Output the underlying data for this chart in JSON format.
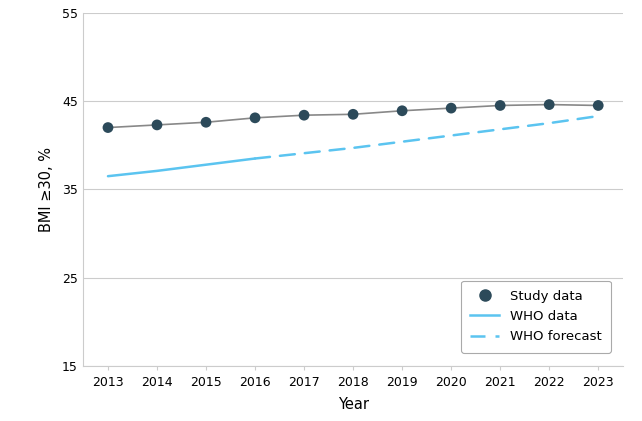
{
  "years": [
    2013,
    2014,
    2015,
    2016,
    2017,
    2018,
    2019,
    2020,
    2021,
    2022,
    2023
  ],
  "study_data": [
    42.0,
    42.3,
    42.6,
    43.1,
    43.4,
    43.5,
    43.9,
    44.2,
    44.5,
    44.6,
    44.5
  ],
  "who_data_years": [
    2013,
    2014,
    2015,
    2016
  ],
  "who_data_values": [
    36.5,
    37.1,
    37.8,
    38.5
  ],
  "who_forecast_years": [
    2016,
    2017,
    2018,
    2019,
    2020,
    2021,
    2022,
    2023
  ],
  "who_forecast_values": [
    38.5,
    39.1,
    39.7,
    40.4,
    41.1,
    41.8,
    42.5,
    43.3
  ],
  "study_line_color": "#888888",
  "study_dot_color": "#2c4a5a",
  "who_data_color": "#5bc4f0",
  "who_forecast_color": "#5bc4f0",
  "ylim": [
    15,
    55
  ],
  "yticks": [
    15,
    25,
    35,
    45,
    55
  ],
  "xlim": [
    2012.5,
    2023.5
  ],
  "xticks": [
    2013,
    2014,
    2015,
    2016,
    2017,
    2018,
    2019,
    2020,
    2021,
    2022,
    2023
  ],
  "ylabel": "BMI ≥30, %",
  "xlabel": "Year",
  "legend_labels": [
    "Study data",
    "WHO data",
    "WHO forecast"
  ],
  "background_color": "#ffffff",
  "grid_color": "#cccccc"
}
